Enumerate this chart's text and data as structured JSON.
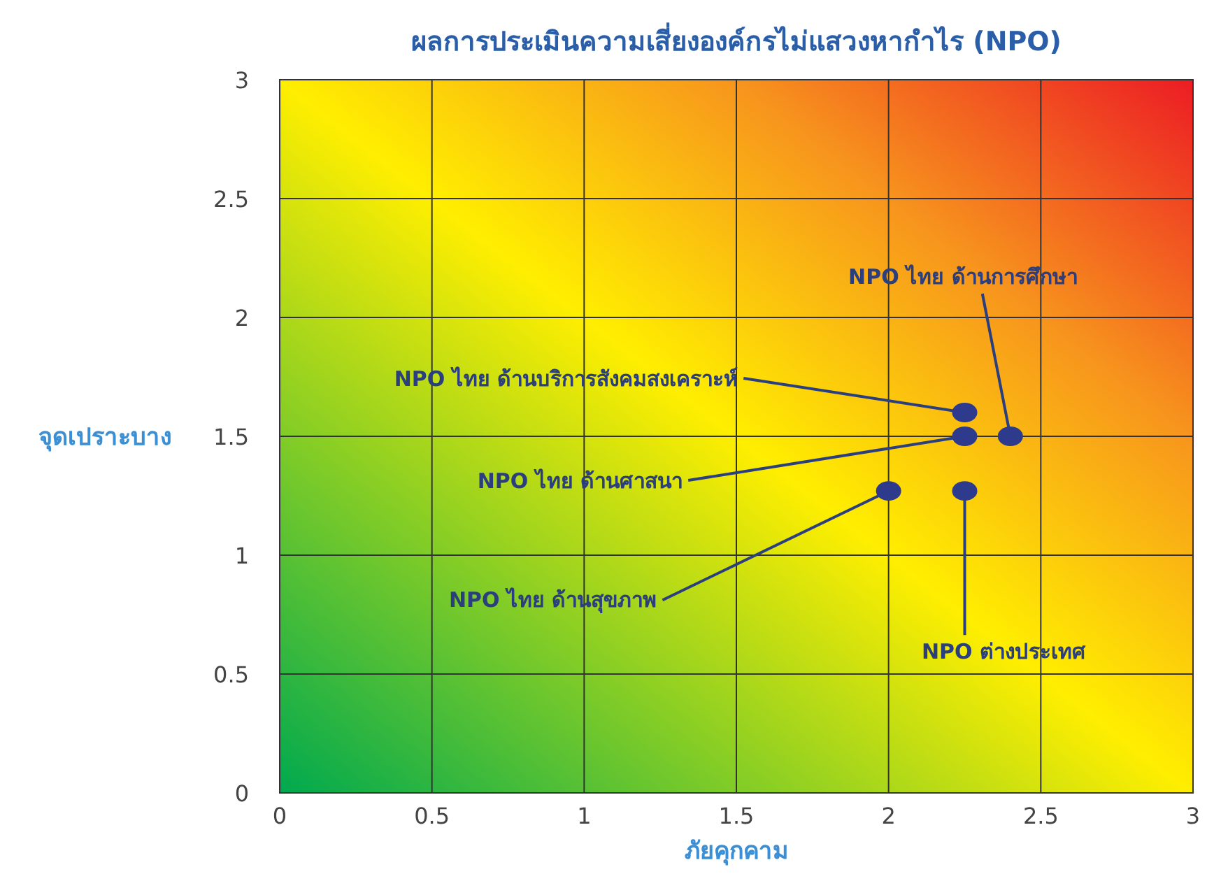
{
  "chart_data": {
    "type": "scatter",
    "title": "ผลการประเมินความเสี่ยงองค์กรไม่แสวงหากำไร (NPO)",
    "xlabel": "ภัยคุกคาม",
    "ylabel": "จุดเปราะบาง",
    "x": [
      2.4,
      2.25,
      2.25,
      2.0,
      2.25
    ],
    "series": [
      {
        "color": "#2e3a8c",
        "values": [
          1.5,
          1.6,
          1.5,
          1.27,
          1.27
        ]
      }
    ],
    "annotations": [
      {
        "text": "NPO ไทย ด้านการศึกษา",
        "x": 2.4,
        "y": 1.5
      },
      {
        "text": "NPO ไทย ด้านบริการสังคมสงเคราะห์",
        "x": 2.25,
        "y": 1.6
      },
      {
        "text": "NPO ไทย ด้านศาสนา",
        "x": 2.25,
        "y": 1.5
      },
      {
        "text": "NPO ไทย ด้านสุขภาพ",
        "x": 2.0,
        "y": 1.27
      },
      {
        "text": "NPO ต่างประเทศ",
        "x": 2.25,
        "y": 1.27
      }
    ],
    "xlim": [
      0,
      3
    ],
    "ylim": [
      0,
      3
    ],
    "xticks": [
      0,
      0.5,
      1,
      1.5,
      2,
      2.5,
      3
    ],
    "yticks": [
      0,
      0.5,
      1,
      1.5,
      2,
      2.5,
      3
    ],
    "grid": true,
    "marker": "circle"
  }
}
